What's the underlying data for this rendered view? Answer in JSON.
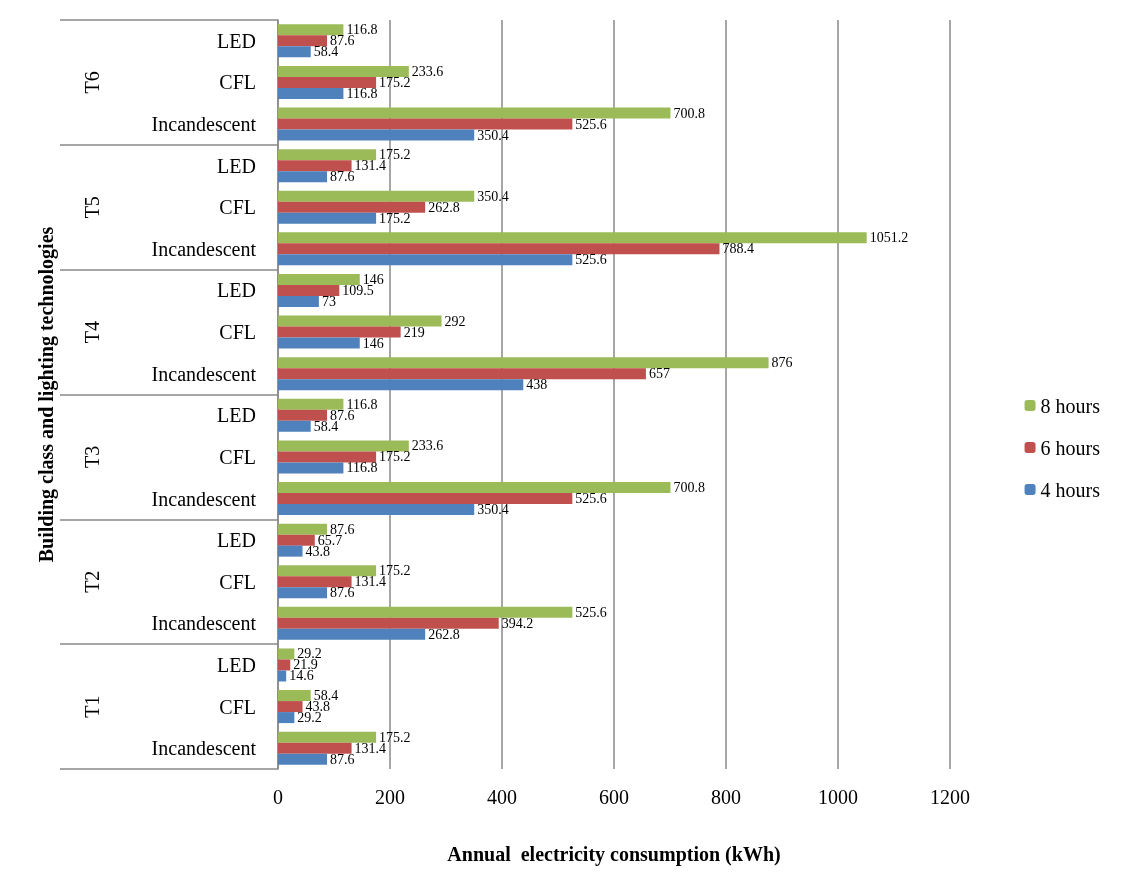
{
  "chart_data": {
    "type": "bar",
    "orientation": "horizontal",
    "xlabel": "Annual  electricity consumption (kWh)",
    "ylabel": "Building class and lighting technologies",
    "categories": [
      "LED",
      "CFL",
      "Incandescent",
      "LED",
      "CFL",
      "Incandescent",
      "LED",
      "CFL",
      "Incandescent",
      "LED",
      "CFL",
      "Incandescent",
      "LED",
      "CFL",
      "Incandescent",
      "LED",
      "CFL",
      "Incandescent"
    ],
    "annotations": [
      "T6",
      "T5",
      "T4",
      "T3",
      "T2",
      "T1"
    ],
    "series": [
      {
        "name": "8 hours",
        "color": "#9bbb59",
        "values": [
          116.8,
          233.6,
          700.8,
          175.2,
          350.4,
          1051.2,
          146,
          292,
          876,
          116.8,
          233.6,
          700.8,
          87.6,
          175.2,
          525.6,
          29.2,
          58.4,
          175.2
        ]
      },
      {
        "name": "6 hours",
        "color": "#c0504d",
        "values": [
          87.6,
          175.2,
          525.6,
          131.4,
          262.8,
          788.4,
          109.5,
          219,
          657,
          87.6,
          175.2,
          525.6,
          65.7,
          131.4,
          394.2,
          21.9,
          43.8,
          131.4
        ]
      },
      {
        "name": "4 hours",
        "color": "#4f81bd",
        "values": [
          58.4,
          116.8,
          350.4,
          87.6,
          175.2,
          525.6,
          73,
          146,
          438,
          58.4,
          116.8,
          350.4,
          43.8,
          87.6,
          262.8,
          14.6,
          29.2,
          87.6
        ]
      }
    ],
    "xlim": [
      0,
      1200
    ],
    "xticks": [
      0,
      200,
      400,
      600,
      800,
      1000,
      1200
    ],
    "grid": "x",
    "legend": "right",
    "data_labels": true
  }
}
